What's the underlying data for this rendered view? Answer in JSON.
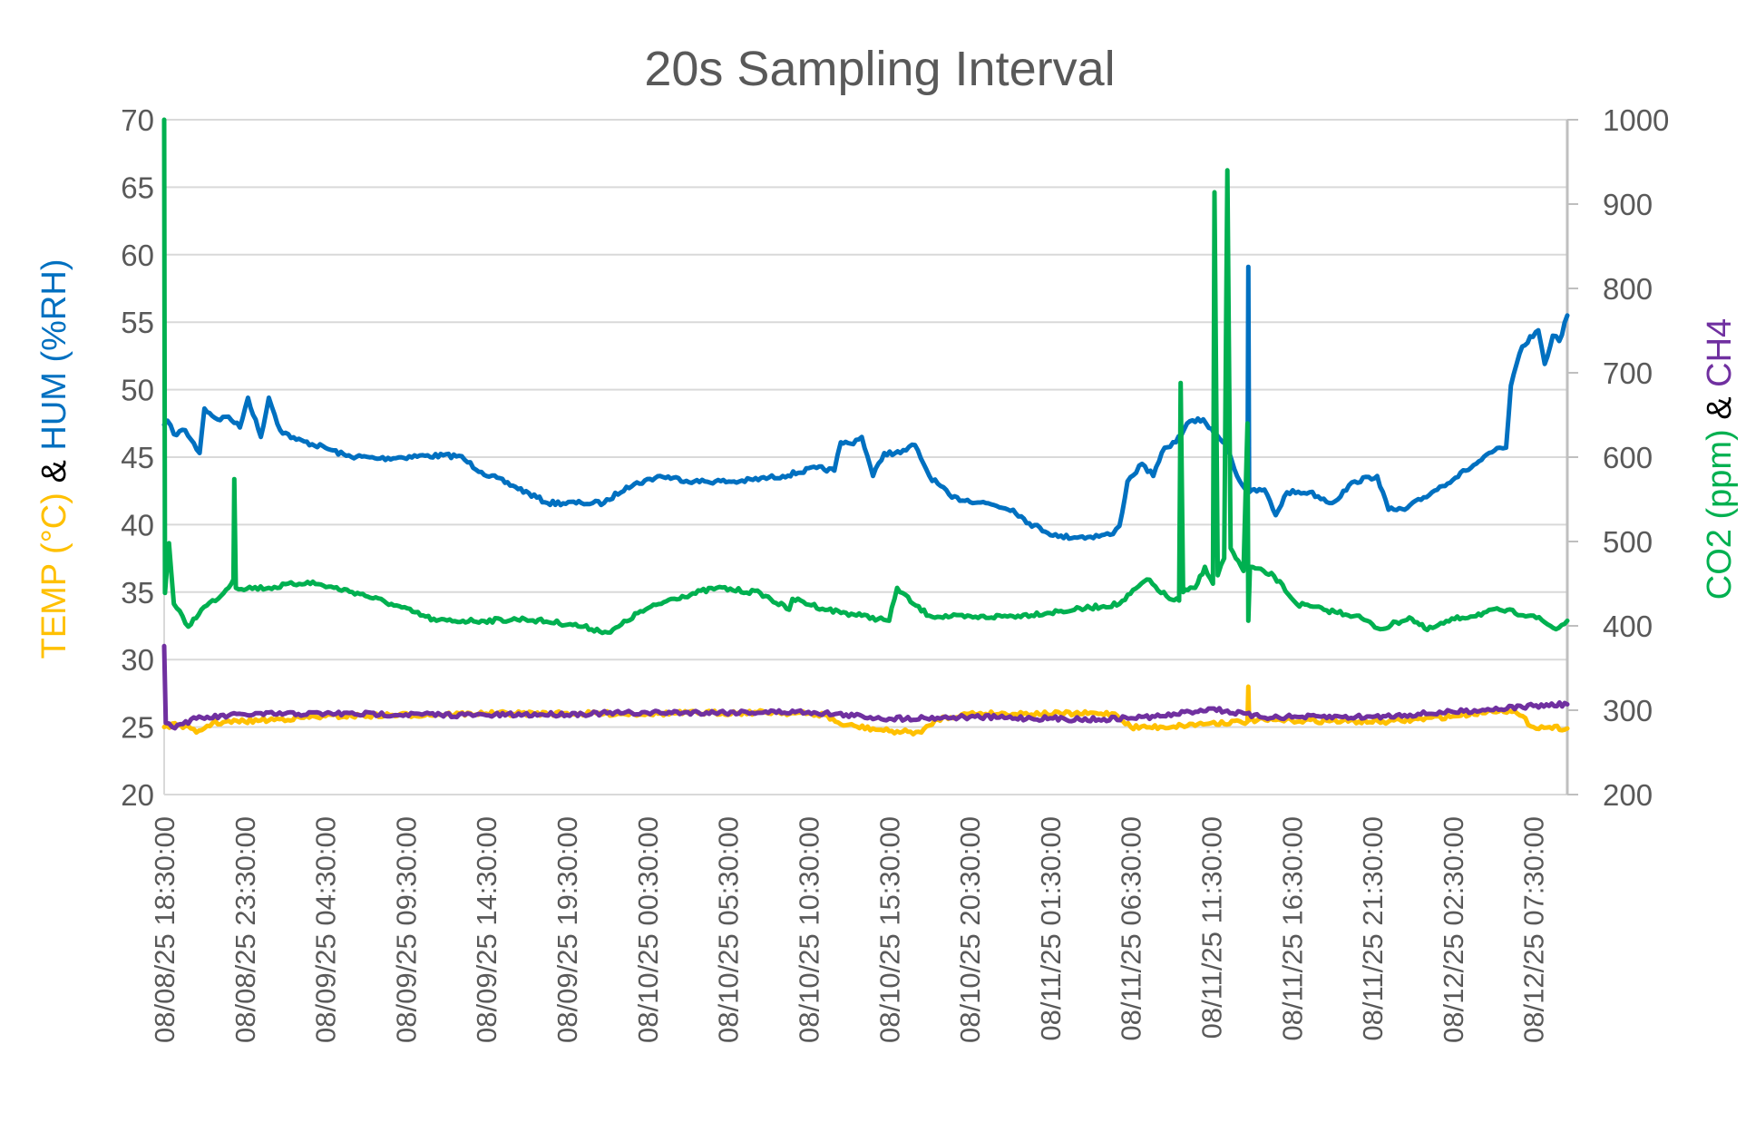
{
  "chart_data": {
    "type": "line",
    "title": "20s Sampling Interval",
    "x_unit": "hours since 08/08/25 18:30:00",
    "x_range": [
      0,
      87.1
    ],
    "x_tick_labels": [
      "08/08/25 18:30:00",
      "08/08/25 23:30:00",
      "08/09/25 04:30:00",
      "08/09/25 09:30:00",
      "08/09/25 14:30:00",
      "08/09/25 19:30:00",
      "08/10/25 00:30:00",
      "08/10/25 05:30:00",
      "08/10/25 10:30:00",
      "08/10/25 15:30:00",
      "08/10/25 20:30:00",
      "08/11/25 01:30:00",
      "08/11/25 06:30:00",
      "08/11/25 11:30:00",
      "08/11/25 16:30:00",
      "08/11/25 21:30:00",
      "08/12/25 02:30:00",
      "08/12/25 07:30:00"
    ],
    "x_tick_step_hours": 5,
    "ylabel_left": {
      "parts": [
        {
          "text": "TEMP (°C)",
          "color": "#FFC000"
        },
        {
          "text": " & ",
          "color": "#000000"
        },
        {
          "text": "HUM (%RH)",
          "color": "#0070C0"
        }
      ]
    },
    "ylabel_right": {
      "parts": [
        {
          "text": "CO2 (ppm)",
          "color": "#00B050"
        },
        {
          "text": " & ",
          "color": "#000000"
        },
        {
          "text": "CH4",
          "color": "#7030A0"
        }
      ]
    },
    "ylim_left": [
      20,
      70
    ],
    "yticks_left": [
      20,
      25,
      30,
      35,
      40,
      45,
      50,
      55,
      60,
      65,
      70
    ],
    "ylim_right": [
      200,
      1000
    ],
    "yticks_right": [
      200,
      300,
      400,
      500,
      600,
      700,
      800,
      900,
      1000
    ],
    "grid": true,
    "legend": "none",
    "series": [
      {
        "name": "HUM",
        "axis": "left",
        "color": "#0070C0",
        "points": [
          [
            0,
            47.4
          ],
          [
            0.2,
            47.7
          ],
          [
            0.6,
            46.7
          ],
          [
            1.3,
            47
          ],
          [
            2.2,
            45.3
          ],
          [
            2.5,
            48.6
          ],
          [
            3.3,
            47.8
          ],
          [
            4,
            48
          ],
          [
            4.7,
            47.2
          ],
          [
            5.2,
            49.4
          ],
          [
            6,
            46.5
          ],
          [
            6.5,
            49.4
          ],
          [
            7.2,
            47
          ],
          [
            8.2,
            46.3
          ],
          [
            10,
            45.7
          ],
          [
            11.3,
            45.1
          ],
          [
            13.4,
            44.9
          ],
          [
            16.2,
            45.1
          ],
          [
            18.3,
            45.1
          ],
          [
            19.7,
            43.9
          ],
          [
            21.8,
            42.8
          ],
          [
            23.8,
            41.6
          ],
          [
            25.9,
            41.6
          ],
          [
            27.3,
            41.6
          ],
          [
            28.7,
            42.8
          ],
          [
            30.8,
            43.6
          ],
          [
            32.9,
            43.2
          ],
          [
            35.7,
            43.2
          ],
          [
            38.4,
            43.6
          ],
          [
            40.5,
            44.2
          ],
          [
            41.6,
            44
          ],
          [
            42,
            46.1
          ],
          [
            42.6,
            46
          ],
          [
            43.3,
            46.5
          ],
          [
            44,
            43.6
          ],
          [
            44.7,
            45.3
          ],
          [
            45.7,
            45.3
          ],
          [
            46.6,
            45.9
          ],
          [
            47.5,
            43.6
          ],
          [
            48.9,
            42
          ],
          [
            51,
            41.6
          ],
          [
            52.7,
            41.1
          ],
          [
            53.7,
            40.1
          ],
          [
            55.5,
            39.1
          ],
          [
            57.5,
            39.1
          ],
          [
            58.9,
            39.3
          ],
          [
            59.3,
            39.9
          ],
          [
            59.8,
            43.2
          ],
          [
            60.7,
            44.5
          ],
          [
            61.4,
            43.6
          ],
          [
            62.1,
            45.7
          ],
          [
            62.8,
            46.1
          ],
          [
            63.5,
            47.5
          ],
          [
            64.5,
            47.8
          ],
          [
            65.2,
            46.7
          ],
          [
            65.9,
            46.1
          ],
          [
            66.6,
            43.6
          ],
          [
            67.25,
            42.4
          ],
          [
            67.3,
            59.1
          ],
          [
            67.35,
            42.4
          ],
          [
            68.3,
            42.6
          ],
          [
            69,
            40.7
          ],
          [
            69.7,
            42.4
          ],
          [
            71.1,
            42.4
          ],
          [
            72.5,
            41.6
          ],
          [
            73.9,
            43.2
          ],
          [
            75.3,
            43.6
          ],
          [
            76,
            41.1
          ],
          [
            77,
            41.1
          ],
          [
            78.7,
            42.4
          ],
          [
            80.8,
            44
          ],
          [
            82.9,
            45.7
          ],
          [
            83.3,
            45.7
          ],
          [
            83.6,
            50.3
          ],
          [
            84.3,
            53.2
          ],
          [
            85.3,
            54.4
          ],
          [
            85.7,
            51.9
          ],
          [
            86.2,
            54
          ],
          [
            86.6,
            53.6
          ],
          [
            87.1,
            55.5
          ]
        ]
      },
      {
        "name": "CO2",
        "axis": "right",
        "color": "#00B050",
        "points": [
          [
            0,
            1000
          ],
          [
            0.05,
            439
          ],
          [
            0.3,
            498
          ],
          [
            0.6,
            426
          ],
          [
            1.5,
            399
          ],
          [
            2.3,
            419
          ],
          [
            3.7,
            439
          ],
          [
            4.3,
            455
          ],
          [
            4.35,
            574
          ],
          [
            4.45,
            445
          ],
          [
            6.5,
            445
          ],
          [
            8.9,
            452
          ],
          [
            12,
            439
          ],
          [
            14.1,
            426
          ],
          [
            16.9,
            406
          ],
          [
            19.7,
            406
          ],
          [
            22.4,
            408
          ],
          [
            25.2,
            402
          ],
          [
            27.7,
            392
          ],
          [
            29.4,
            415
          ],
          [
            31.5,
            432
          ],
          [
            34.3,
            445
          ],
          [
            37,
            439
          ],
          [
            38.8,
            419
          ],
          [
            39,
            432
          ],
          [
            41.2,
            419
          ],
          [
            43.3,
            412
          ],
          [
            45,
            406
          ],
          [
            45.5,
            445
          ],
          [
            46.5,
            426
          ],
          [
            47.5,
            412
          ],
          [
            50.2,
            410
          ],
          [
            53,
            412
          ],
          [
            56.5,
            419
          ],
          [
            59.3,
            426
          ],
          [
            61,
            455
          ],
          [
            62.4,
            432
          ],
          [
            63,
            430
          ],
          [
            63.1,
            688
          ],
          [
            63.25,
            440
          ],
          [
            64,
            445
          ],
          [
            64.6,
            470
          ],
          [
            65.1,
            450
          ],
          [
            65.2,
            914
          ],
          [
            65.4,
            460
          ],
          [
            65.8,
            480
          ],
          [
            66,
            940
          ],
          [
            66.2,
            492
          ],
          [
            67,
            465
          ],
          [
            67.25,
            640
          ],
          [
            67.3,
            406
          ],
          [
            67.4,
            470
          ],
          [
            68.9,
            459
          ],
          [
            70.3,
            426
          ],
          [
            72,
            419
          ],
          [
            74,
            412
          ],
          [
            75.5,
            396
          ],
          [
            77.3,
            410
          ],
          [
            78.4,
            395
          ],
          [
            80.1,
            408
          ],
          [
            82.9,
            419
          ],
          [
            85,
            412
          ],
          [
            86.4,
            396
          ],
          [
            87.1,
            406
          ]
        ]
      },
      {
        "name": "TEMP",
        "axis": "left",
        "color": "#FFC000",
        "points": [
          [
            0,
            25
          ],
          [
            1,
            25.2
          ],
          [
            2,
            24.6
          ],
          [
            3,
            25.3
          ],
          [
            6,
            25.5
          ],
          [
            10,
            25.8
          ],
          [
            20,
            26
          ],
          [
            30,
            26
          ],
          [
            38,
            26.1
          ],
          [
            41,
            25.9
          ],
          [
            42,
            25.2
          ],
          [
            45,
            24.7
          ],
          [
            47,
            24.6
          ],
          [
            48,
            25.6
          ],
          [
            50,
            26
          ],
          [
            59,
            26
          ],
          [
            60,
            25
          ],
          [
            62,
            25
          ],
          [
            65,
            25.3
          ],
          [
            67.25,
            25.4
          ],
          [
            67.3,
            28
          ],
          [
            67.35,
            25.5
          ],
          [
            70,
            25.5
          ],
          [
            76,
            25.4
          ],
          [
            80,
            25.8
          ],
          [
            83,
            26.3
          ],
          [
            84,
            26
          ],
          [
            85,
            25
          ],
          [
            86,
            25
          ],
          [
            87.1,
            24.9
          ]
        ]
      },
      {
        "name": "CH4",
        "axis": "right",
        "color": "#7030A0",
        "points": [
          [
            0,
            376
          ],
          [
            0.1,
            285
          ],
          [
            0.5,
            280
          ],
          [
            2,
            290
          ],
          [
            5,
            295
          ],
          [
            10,
            296
          ],
          [
            20,
            294
          ],
          [
            30,
            297
          ],
          [
            40,
            298
          ],
          [
            45,
            290
          ],
          [
            50,
            292
          ],
          [
            58,
            289
          ],
          [
            62,
            293
          ],
          [
            65,
            302
          ],
          [
            68,
            292
          ],
          [
            75,
            292
          ],
          [
            80,
            298
          ],
          [
            85,
            305
          ],
          [
            87.1,
            307
          ]
        ]
      }
    ]
  }
}
